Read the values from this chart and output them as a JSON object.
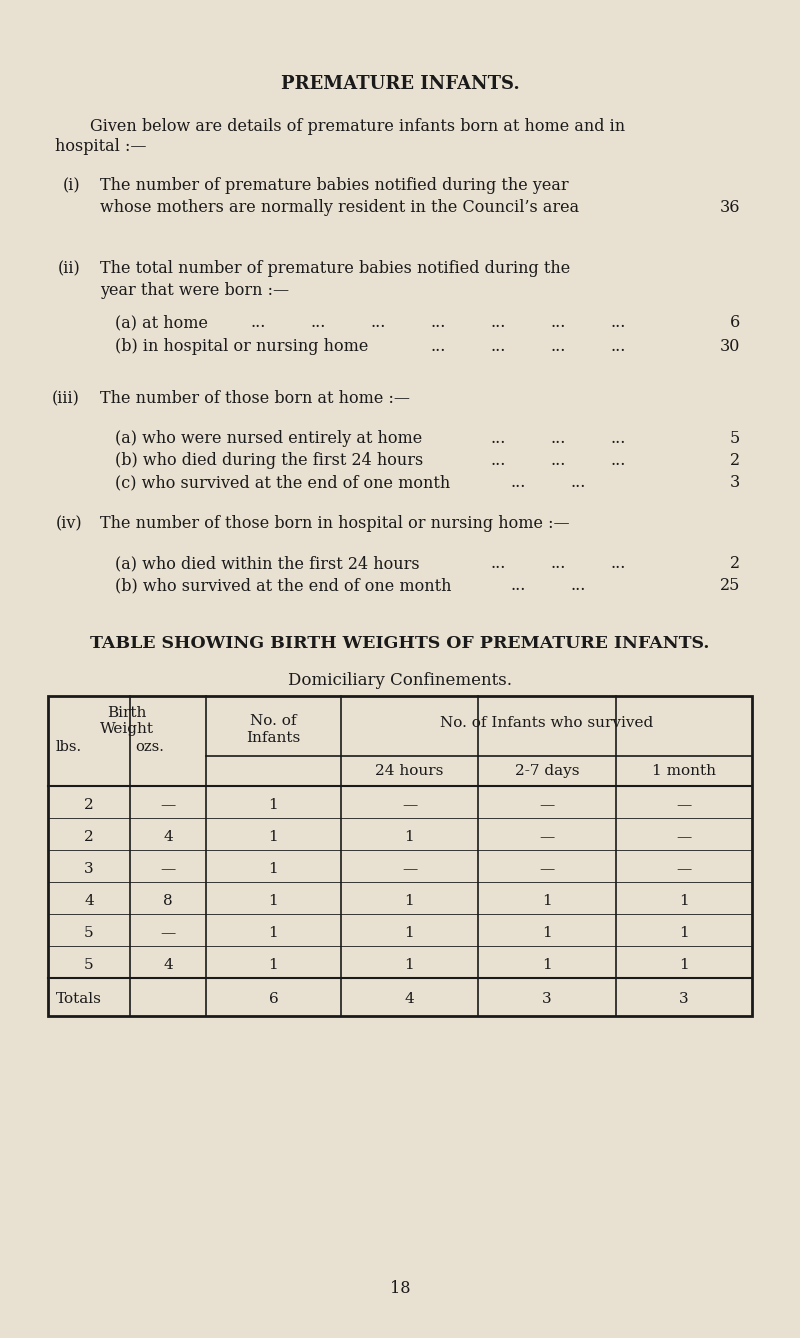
{
  "bg_color": "#e8e0d0",
  "title": "PREMATURE INFANTS.",
  "page_number": "18",
  "text_color": "#1a1a1a",
  "line_color": "#1a1a1a",
  "table_title": "TABLE SHOWING BIRTH WEIGHTS OF PREMATURE INFANTS.",
  "table_subtitle": "Domiciliary Confinements.",
  "table_rows": [
    [
      "2",
      "—",
      "1",
      "—",
      "—",
      "—"
    ],
    [
      "2",
      "4",
      "1",
      "1",
      "—",
      "—"
    ],
    [
      "3",
      "—",
      "1",
      "—",
      "—",
      "—"
    ],
    [
      "4",
      "8",
      "1",
      "1",
      "1",
      "1"
    ],
    [
      "5",
      "—",
      "1",
      "1",
      "1",
      "1"
    ],
    [
      "5",
      "4",
      "1",
      "1",
      "1",
      "1"
    ]
  ],
  "table_totals": [
    "Totals",
    "",
    "6",
    "4",
    "3",
    "3"
  ]
}
